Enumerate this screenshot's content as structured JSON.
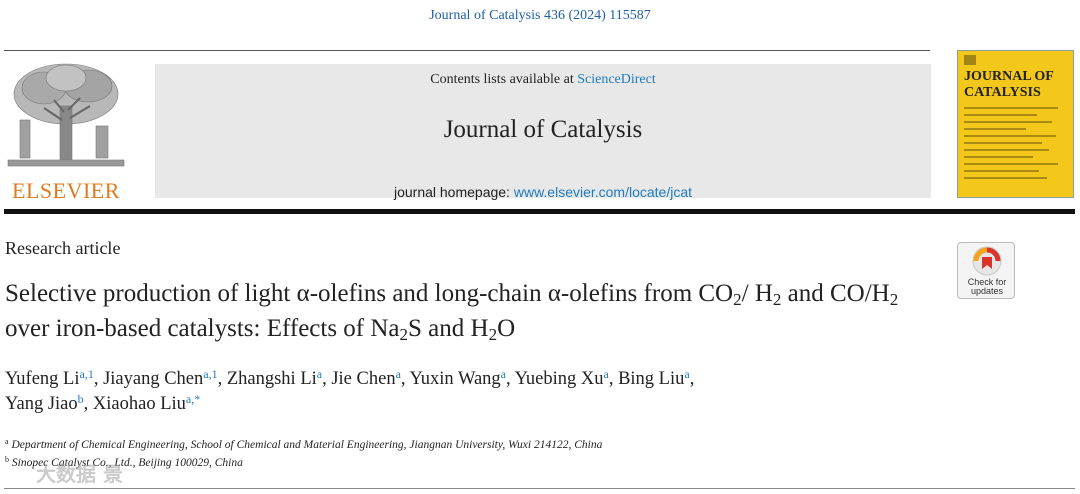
{
  "header": {
    "journal_reference": "Journal of Catalysis 436 (2024) 115587",
    "contents_prefix": "Contents lists available at ",
    "contents_link": "ScienceDirect",
    "journal_name": "Journal of Catalysis",
    "homepage_prefix": "journal homepage: ",
    "homepage_link": "www.elsevier.com/locate/jcat",
    "publisher_logo_text": "ELSEVIER",
    "cover_title": "JOURNAL OF CATALYSIS"
  },
  "article": {
    "type": "Research article",
    "title_parts": {
      "p1": "Selective production of light α-olefins and long-chain α-olefins from CO",
      "s1": "2",
      "p2": "/ H",
      "s2": "2",
      "p3": " and CO/H",
      "s3": "2",
      "p4": " over iron-based catalysts: Effects of Na",
      "s4": "2",
      "p5": "S and H",
      "s5": "2",
      "p6": "O"
    },
    "check_badge": "Check for updates"
  },
  "authors": [
    {
      "name": "Yufeng Li",
      "sup": "a,1"
    },
    {
      "name": "Jiayang Chen",
      "sup": "a,1"
    },
    {
      "name": "Zhangshi Li",
      "sup": "a"
    },
    {
      "name": "Jie Chen",
      "sup": "a"
    },
    {
      "name": "Yuxin Wang",
      "sup": "a"
    },
    {
      "name": "Yuebing Xu",
      "sup": "a"
    },
    {
      "name": "Bing Liu",
      "sup": "a"
    },
    {
      "name": "Yang Jiao",
      "sup": "b"
    },
    {
      "name": "Xiaohao Liu",
      "sup": "a,*"
    }
  ],
  "affiliations": [
    {
      "mark": "a",
      "text": "Department of Chemical Engineering, School of Chemical and Material Engineering, Jiangnan University, Wuxi 214122, China"
    },
    {
      "mark": "b",
      "text": "Sinopec Catalyst Co., Ltd., Beijing 100029, China"
    }
  ],
  "watermark": "大数据 景",
  "colors": {
    "link": "#1f7bc0",
    "elsevier_orange": "#e07a1f",
    "cover_yellow": "#f3c81a",
    "header_gray": "#e8e8e8"
  }
}
